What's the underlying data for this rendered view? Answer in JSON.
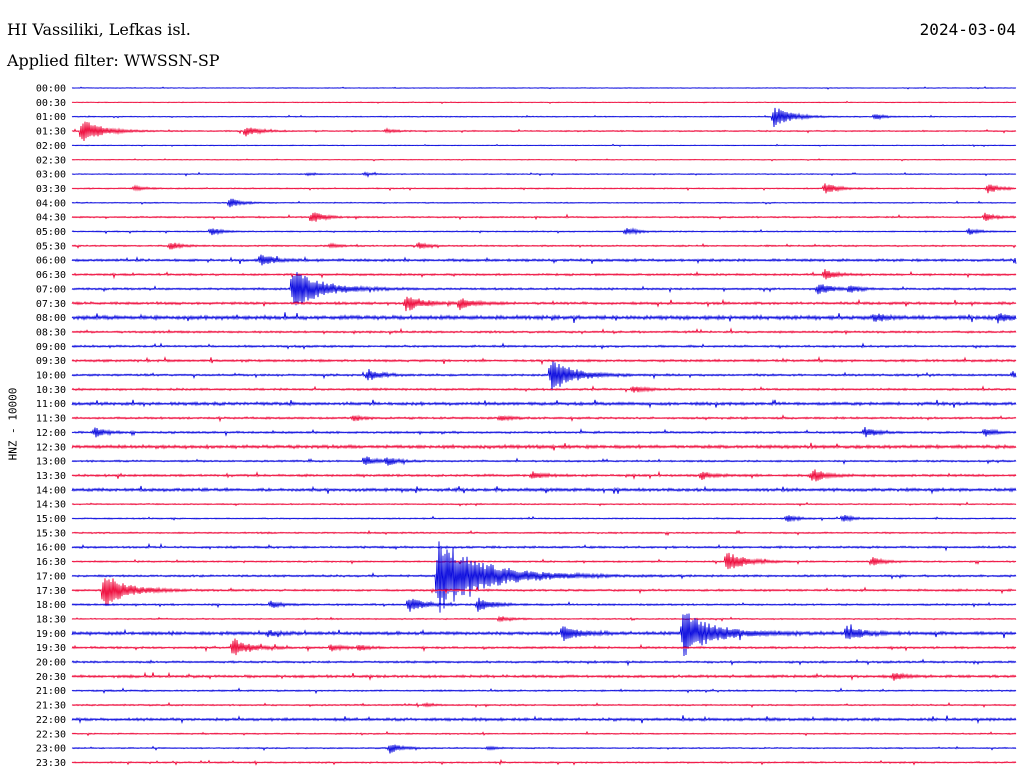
{
  "header": {
    "station": "HI Vassiliki, Lefkas isl.",
    "date": "2024-03-04",
    "filter": "Applied filter: WWSSN-SP"
  },
  "channel_label": "HNZ - 10000",
  "colors": {
    "trace_a": "#0000dd",
    "trace_b": "#ee0033",
    "text": "#000000",
    "background": "#ffffff"
  },
  "chart_data": {
    "type": "line",
    "title": "HI Vassiliki, Lefkas isl.",
    "subtitle": "Applied filter: WWSSN-SP",
    "ylabel": "HNZ - 10000",
    "xlabel": "",
    "grid": false,
    "legend": "none",
    "x_units": "minutes within each 30-minute trace line",
    "xlim": [
      0,
      30
    ],
    "row_labels": [
      "00:00",
      "00:30",
      "01:00",
      "01:30",
      "02:00",
      "02:30",
      "03:00",
      "03:30",
      "04:00",
      "04:30",
      "05:00",
      "05:30",
      "06:00",
      "06:30",
      "07:00",
      "07:30",
      "08:00",
      "08:30",
      "09:00",
      "09:30",
      "10:00",
      "10:30",
      "11:00",
      "11:30",
      "12:00",
      "12:30",
      "13:00",
      "13:30",
      "14:00",
      "14:30",
      "15:00",
      "15:30",
      "16:00",
      "16:30",
      "17:00",
      "17:30",
      "18:00",
      "18:30",
      "19:00",
      "19:30",
      "20:00",
      "20:30",
      "21:00",
      "21:30",
      "22:00",
      "22:30",
      "23:00",
      "23:30"
    ],
    "row_colors": [
      "#0000dd",
      "#ee0033"
    ],
    "noise_levels": [
      0.3,
      0.3,
      0.4,
      0.5,
      0.3,
      0.3,
      0.4,
      0.5,
      0.4,
      0.6,
      0.5,
      0.6,
      1.0,
      0.8,
      0.8,
      1.0,
      1.5,
      0.8,
      0.8,
      0.9,
      0.8,
      0.8,
      1.2,
      0.8,
      0.8,
      1.3,
      0.7,
      0.9,
      1.2,
      0.5,
      0.5,
      0.6,
      0.8,
      0.6,
      0.8,
      0.8,
      0.7,
      0.5,
      1.3,
      0.8,
      0.8,
      1.0,
      0.6,
      0.6,
      1.1,
      0.5,
      0.5,
      0.6
    ],
    "events": [
      {
        "row": 2,
        "minute": 22.3,
        "amplitude": 11
      },
      {
        "row": 2,
        "minute": 25.5,
        "amplitude": 3
      },
      {
        "row": 3,
        "minute": 0.3,
        "amplitude": 13
      },
      {
        "row": 3,
        "minute": 5.5,
        "amplitude": 6
      },
      {
        "row": 3,
        "minute": 10.0,
        "amplitude": 2
      },
      {
        "row": 6,
        "minute": 7.5,
        "amplitude": 1.5
      },
      {
        "row": 6,
        "minute": 9.3,
        "amplitude": 1.5
      },
      {
        "row": 7,
        "minute": 2.0,
        "amplitude": 2.5
      },
      {
        "row": 7,
        "minute": 23.9,
        "amplitude": 6
      },
      {
        "row": 7,
        "minute": 29.1,
        "amplitude": 5
      },
      {
        "row": 8,
        "minute": 5.0,
        "amplitude": 5
      },
      {
        "row": 9,
        "minute": 7.6,
        "amplitude": 6
      },
      {
        "row": 9,
        "minute": 29.0,
        "amplitude": 4
      },
      {
        "row": 10,
        "minute": 4.4,
        "amplitude": 4
      },
      {
        "row": 10,
        "minute": 17.6,
        "amplitude": 4
      },
      {
        "row": 10,
        "minute": 28.5,
        "amplitude": 3
      },
      {
        "row": 11,
        "minute": 3.1,
        "amplitude": 4
      },
      {
        "row": 11,
        "minute": 8.2,
        "amplitude": 2
      },
      {
        "row": 11,
        "minute": 11.0,
        "amplitude": 3
      },
      {
        "row": 12,
        "minute": 6.0,
        "amplitude": 6
      },
      {
        "row": 12,
        "minute": 30.0,
        "amplitude": 4
      },
      {
        "row": 13,
        "minute": 23.9,
        "amplitude": 5
      },
      {
        "row": 14,
        "minute": 7.0,
        "amplitude": 22
      },
      {
        "row": 14,
        "minute": 23.7,
        "amplitude": 6
      },
      {
        "row": 14,
        "minute": 24.7,
        "amplitude": 4
      },
      {
        "row": 15,
        "minute": 10.6,
        "amplitude": 9
      },
      {
        "row": 15,
        "minute": 12.3,
        "amplitude": 6
      },
      {
        "row": 16,
        "minute": 25.5,
        "amplitude": 4
      },
      {
        "row": 16,
        "minute": 29.4,
        "amplitude": 5
      },
      {
        "row": 20,
        "minute": 9.4,
        "amplitude": 6
      },
      {
        "row": 20,
        "minute": 15.2,
        "amplitude": 17
      },
      {
        "row": 20,
        "minute": 29.9,
        "amplitude": 4
      },
      {
        "row": 21,
        "minute": 17.8,
        "amplitude": 4
      },
      {
        "row": 23,
        "minute": 8.9,
        "amplitude": 3
      },
      {
        "row": 23,
        "minute": 13.6,
        "amplitude": 3
      },
      {
        "row": 24,
        "minute": 0.7,
        "amplitude": 5
      },
      {
        "row": 24,
        "minute": 25.2,
        "amplitude": 5
      },
      {
        "row": 24,
        "minute": 29.0,
        "amplitude": 4
      },
      {
        "row": 26,
        "minute": 9.3,
        "amplitude": 5
      },
      {
        "row": 26,
        "minute": 10.0,
        "amplitude": 4
      },
      {
        "row": 27,
        "minute": 14.6,
        "amplitude": 4
      },
      {
        "row": 27,
        "minute": 20.0,
        "amplitude": 4
      },
      {
        "row": 27,
        "minute": 23.5,
        "amplitude": 7
      },
      {
        "row": 30,
        "minute": 22.7,
        "amplitude": 4
      },
      {
        "row": 30,
        "minute": 24.5,
        "amplitude": 4
      },
      {
        "row": 33,
        "minute": 20.8,
        "amplitude": 11
      },
      {
        "row": 33,
        "minute": 25.4,
        "amplitude": 5
      },
      {
        "row": 34,
        "minute": 11.6,
        "amplitude": 40
      },
      {
        "row": 35,
        "minute": 1.0,
        "amplitude": 17
      },
      {
        "row": 36,
        "minute": 6.3,
        "amplitude": 4
      },
      {
        "row": 36,
        "minute": 10.7,
        "amplitude": 8
      },
      {
        "row": 36,
        "minute": 12.9,
        "amplitude": 7
      },
      {
        "row": 37,
        "minute": 13.6,
        "amplitude": 3
      },
      {
        "row": 38,
        "minute": 6.2,
        "amplitude": 3
      },
      {
        "row": 38,
        "minute": 15.6,
        "amplitude": 8
      },
      {
        "row": 38,
        "minute": 19.4,
        "amplitude": 24
      },
      {
        "row": 38,
        "minute": 24.6,
        "amplitude": 8
      },
      {
        "row": 39,
        "minute": 5.1,
        "amplitude": 10
      },
      {
        "row": 39,
        "minute": 8.2,
        "amplitude": 4
      },
      {
        "row": 39,
        "minute": 9.1,
        "amplitude": 3
      },
      {
        "row": 41,
        "minute": 26.1,
        "amplitude": 4
      },
      {
        "row": 43,
        "minute": 11.2,
        "amplitude": 2
      },
      {
        "row": 46,
        "minute": 10.1,
        "amplitude": 5
      },
      {
        "row": 46,
        "minute": 13.2,
        "amplitude": 2
      }
    ]
  }
}
